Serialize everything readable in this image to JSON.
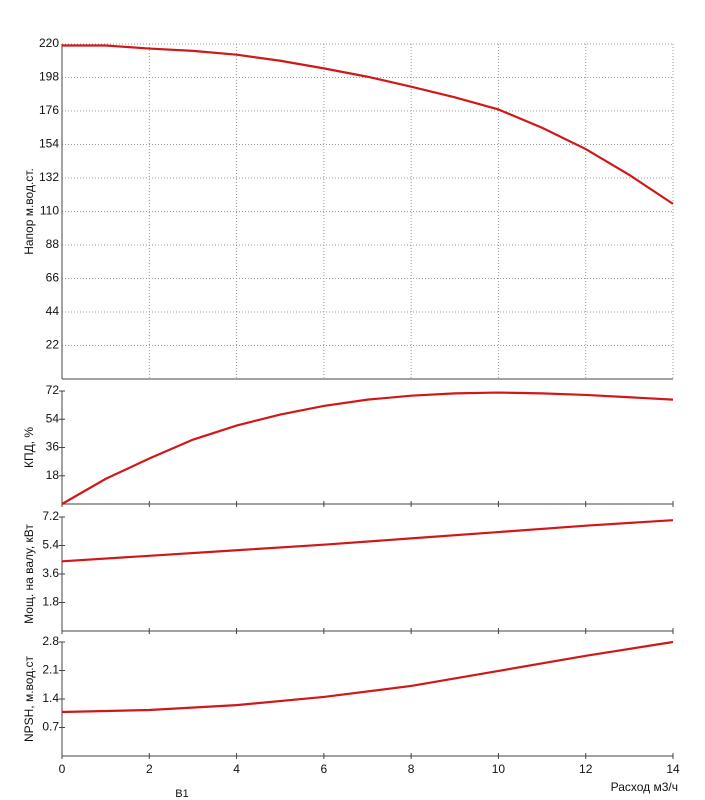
{
  "chart_data": [
    {
      "type": "line",
      "ylabel": "Напор м.вод.ст.",
      "color": "#d01818",
      "grid": true,
      "x": [
        0,
        1,
        2,
        3,
        4,
        5,
        6,
        7,
        8,
        9,
        10,
        11,
        12,
        13,
        14
      ],
      "values": [
        219,
        219,
        217,
        215.5,
        213,
        209,
        204,
        198.5,
        192,
        185,
        177,
        165,
        151,
        134,
        115
      ],
      "xlim": [
        0,
        14
      ],
      "xticks": [
        0,
        2,
        4,
        6,
        8,
        10,
        12,
        14
      ],
      "ylim": [
        0,
        220
      ],
      "yticks": [
        22,
        44,
        66,
        88,
        110,
        132,
        154,
        176,
        198,
        220
      ]
    },
    {
      "type": "line",
      "ylabel": "КПД, %",
      "color": "#d01818",
      "grid": false,
      "x": [
        0,
        1,
        2,
        3,
        4,
        5,
        6,
        7,
        8,
        9,
        10,
        11,
        12,
        13,
        14
      ],
      "values": [
        0,
        16,
        29,
        41,
        50,
        57,
        62.5,
        66.5,
        69,
        70.5,
        71,
        70.5,
        69.5,
        68,
        66.5
      ],
      "xlim": [
        0,
        14
      ],
      "xticks": [
        0,
        2,
        4,
        6,
        8,
        10,
        12,
        14
      ],
      "ylim": [
        0,
        72
      ],
      "yticks": [
        18,
        36,
        54,
        72
      ]
    },
    {
      "type": "line",
      "ylabel": "Мощ. на валу, кВт",
      "color": "#d01818",
      "grid": false,
      "x": [
        0,
        2,
        4,
        6,
        8,
        10,
        12,
        14
      ],
      "values": [
        4.4,
        4.75,
        5.1,
        5.45,
        5.85,
        6.25,
        6.65,
        7.0
      ],
      "xlim": [
        0,
        14
      ],
      "xticks": [
        0,
        2,
        4,
        6,
        8,
        10,
        12,
        14
      ],
      "ylim": [
        0,
        7.2
      ],
      "yticks": [
        1.8,
        3.6,
        5.4,
        7.2
      ]
    },
    {
      "type": "line",
      "ylabel": "NPSH, м.вод.ст",
      "xlabel": "Расход м3/ч",
      "annotation": "B1",
      "color": "#d01818",
      "grid": false,
      "x": [
        0,
        2,
        4,
        6,
        8,
        10,
        12,
        14
      ],
      "values": [
        1.08,
        1.13,
        1.25,
        1.45,
        1.72,
        2.09,
        2.46,
        2.8
      ],
      "xlim": [
        0,
        14
      ],
      "xticks": [
        0,
        2,
        4,
        6,
        8,
        10,
        12,
        14
      ],
      "ylim": [
        0,
        2.8
      ],
      "yticks": [
        0.7,
        1.4,
        2.1,
        2.8
      ]
    }
  ]
}
